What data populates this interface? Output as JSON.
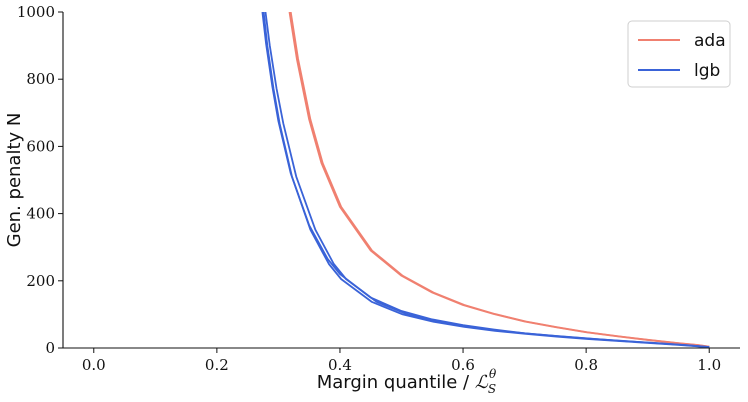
{
  "chart_data": {
    "type": "line",
    "xlabel": "Margin quantile / ",
    "xlabel_math": "ℒ",
    "xlabel_sub": "S",
    "xlabel_sup": "θ",
    "ylabel": "Gen. penalty N",
    "xlim": [
      -0.05,
      1.05
    ],
    "ylim": [
      0,
      1000
    ],
    "xticks": [
      "0.0",
      "0.2",
      "0.4",
      "0.6",
      "0.8",
      "1.0"
    ],
    "xtick_values": [
      0.0,
      0.2,
      0.4,
      0.6,
      0.8,
      1.0
    ],
    "yticks": [
      "0",
      "200",
      "400",
      "600",
      "800",
      "1000"
    ],
    "ytick_values": [
      0,
      200,
      400,
      600,
      800,
      1000
    ],
    "grid": false,
    "legend_position": "top-right",
    "series": [
      {
        "name": "ada",
        "color": "#f08070",
        "curves": [
          {
            "x": [
              0.318,
              0.33,
              0.35,
              0.37,
              0.4,
              0.45,
              0.5,
              0.55,
              0.6,
              0.65,
              0.7,
              0.75,
              0.8,
              0.85,
              0.9,
              0.95,
              0.98,
              1.0
            ],
            "y": [
              1000,
              860,
              680,
              550,
              420,
              290,
              215,
              165,
              128,
              101,
              79,
              62,
              47,
              35,
              24,
              14,
              9,
              4
            ]
          },
          {
            "x": [
              0.32,
              0.332,
              0.352,
              0.372,
              0.402,
              0.452,
              0.502,
              0.552,
              0.602,
              0.652,
              0.702,
              0.752,
              0.802,
              0.852,
              0.902,
              0.952,
              0.982,
              1.0
            ],
            "y": [
              1000,
              860,
              680,
              550,
              420,
              290,
              215,
              165,
              128,
              101,
              79,
              62,
              47,
              35,
              24,
              14,
              9,
              4
            ]
          }
        ]
      },
      {
        "name": "lgb",
        "color": "#3a63d8",
        "curves": [
          {
            "x": [
              0.274,
              0.28,
              0.29,
              0.3,
              0.32,
              0.35,
              0.38,
              0.4,
              0.45,
              0.5,
              0.55,
              0.6,
              0.65,
              0.7,
              0.75,
              0.8,
              0.85,
              0.9,
              0.95,
              0.98,
              1.0
            ],
            "y": [
              1000,
              905,
              780,
              675,
              520,
              365,
              265,
              220,
              150,
              110,
              85,
              68,
              55,
              44,
              36,
              29,
              22,
              16,
              10,
              6,
              3
            ]
          },
          {
            "x": [
              0.276,
              0.282,
              0.292,
              0.302,
              0.322,
              0.352,
              0.382,
              0.402,
              0.452,
              0.502,
              0.552,
              0.602,
              0.652,
              0.702,
              0.752,
              0.802,
              0.852,
              0.902,
              0.952,
              0.982,
              1.0
            ],
            "y": [
              1000,
              900,
              772,
              668,
              510,
              352,
              250,
              205,
              137,
              100,
              78,
              63,
              51,
              42,
              34,
              27,
              21,
              15,
              9,
              5,
              2
            ]
          },
          {
            "x": [
              0.279,
              0.286,
              0.297,
              0.308,
              0.329,
              0.36,
              0.39,
              0.41,
              0.46,
              0.51,
              0.56,
              0.61,
              0.66,
              0.71,
              0.76,
              0.81,
              0.86,
              0.91,
              0.96,
              0.985,
              1.0
            ],
            "y": [
              1000,
              900,
              772,
              668,
              510,
              352,
              250,
              205,
              137,
              100,
              78,
              63,
              51,
              42,
              34,
              27,
              21,
              15,
              9,
              5,
              2
            ]
          }
        ]
      }
    ]
  }
}
